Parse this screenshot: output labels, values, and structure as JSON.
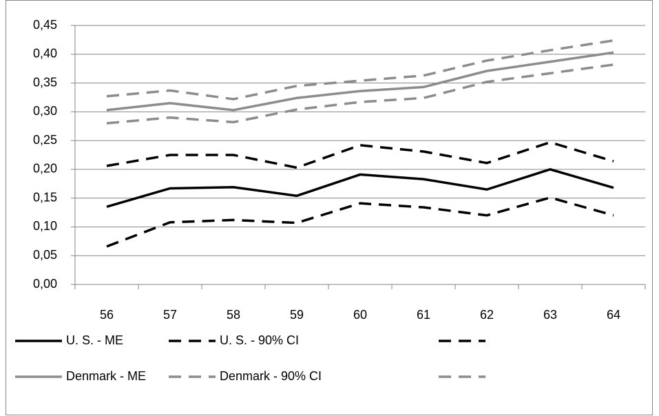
{
  "chart_data": {
    "type": "line",
    "categories": [
      "56",
      "57",
      "58",
      "59",
      "60",
      "61",
      "62",
      "63",
      "64"
    ],
    "series": [
      {
        "name": "U. S. - ME",
        "color": "#000000",
        "dash": false,
        "values": [
          0.135,
          0.167,
          0.169,
          0.154,
          0.191,
          0.183,
          0.165,
          0.2,
          0.168
        ]
      },
      {
        "name": "U. S. - 90% CI",
        "color": "#000000",
        "dash": true,
        "values": [
          0.206,
          0.225,
          0.225,
          0.203,
          0.242,
          0.231,
          0.211,
          0.247,
          0.214
        ]
      },
      {
        "color": "#000000",
        "dash": true,
        "values": [
          0.066,
          0.108,
          0.112,
          0.107,
          0.141,
          0.134,
          0.12,
          0.151,
          0.12
        ]
      },
      {
        "name": "Denmark - ME",
        "color": "#8c8c8c",
        "dash": false,
        "values": [
          0.303,
          0.315,
          0.303,
          0.324,
          0.336,
          0.343,
          0.371,
          0.387,
          0.403
        ]
      },
      {
        "name": "Denmark - 90% CI",
        "color": "#8c8c8c",
        "dash": true,
        "values": [
          0.327,
          0.337,
          0.322,
          0.345,
          0.354,
          0.363,
          0.389,
          0.407,
          0.424
        ]
      },
      {
        "color": "#8c8c8c",
        "dash": true,
        "values": [
          0.28,
          0.29,
          0.282,
          0.304,
          0.317,
          0.324,
          0.352,
          0.367,
          0.382
        ]
      }
    ],
    "ylim": [
      0,
      0.45
    ],
    "yticks": [
      {
        "value": 0,
        "label": "0,00"
      },
      {
        "value": 0.05,
        "label": "0,05"
      },
      {
        "value": 0.1,
        "label": "0,10"
      },
      {
        "value": 0.15,
        "label": "0,15"
      },
      {
        "value": 0.2,
        "label": "0,20"
      },
      {
        "value": 0.25,
        "label": "0,25"
      },
      {
        "value": 0.3,
        "label": "0,30"
      },
      {
        "value": 0.35,
        "label": "0,35"
      },
      {
        "value": 0.4,
        "label": "0,40"
      },
      {
        "value": 0.45,
        "label": "0,45"
      }
    ],
    "grid": true
  }
}
